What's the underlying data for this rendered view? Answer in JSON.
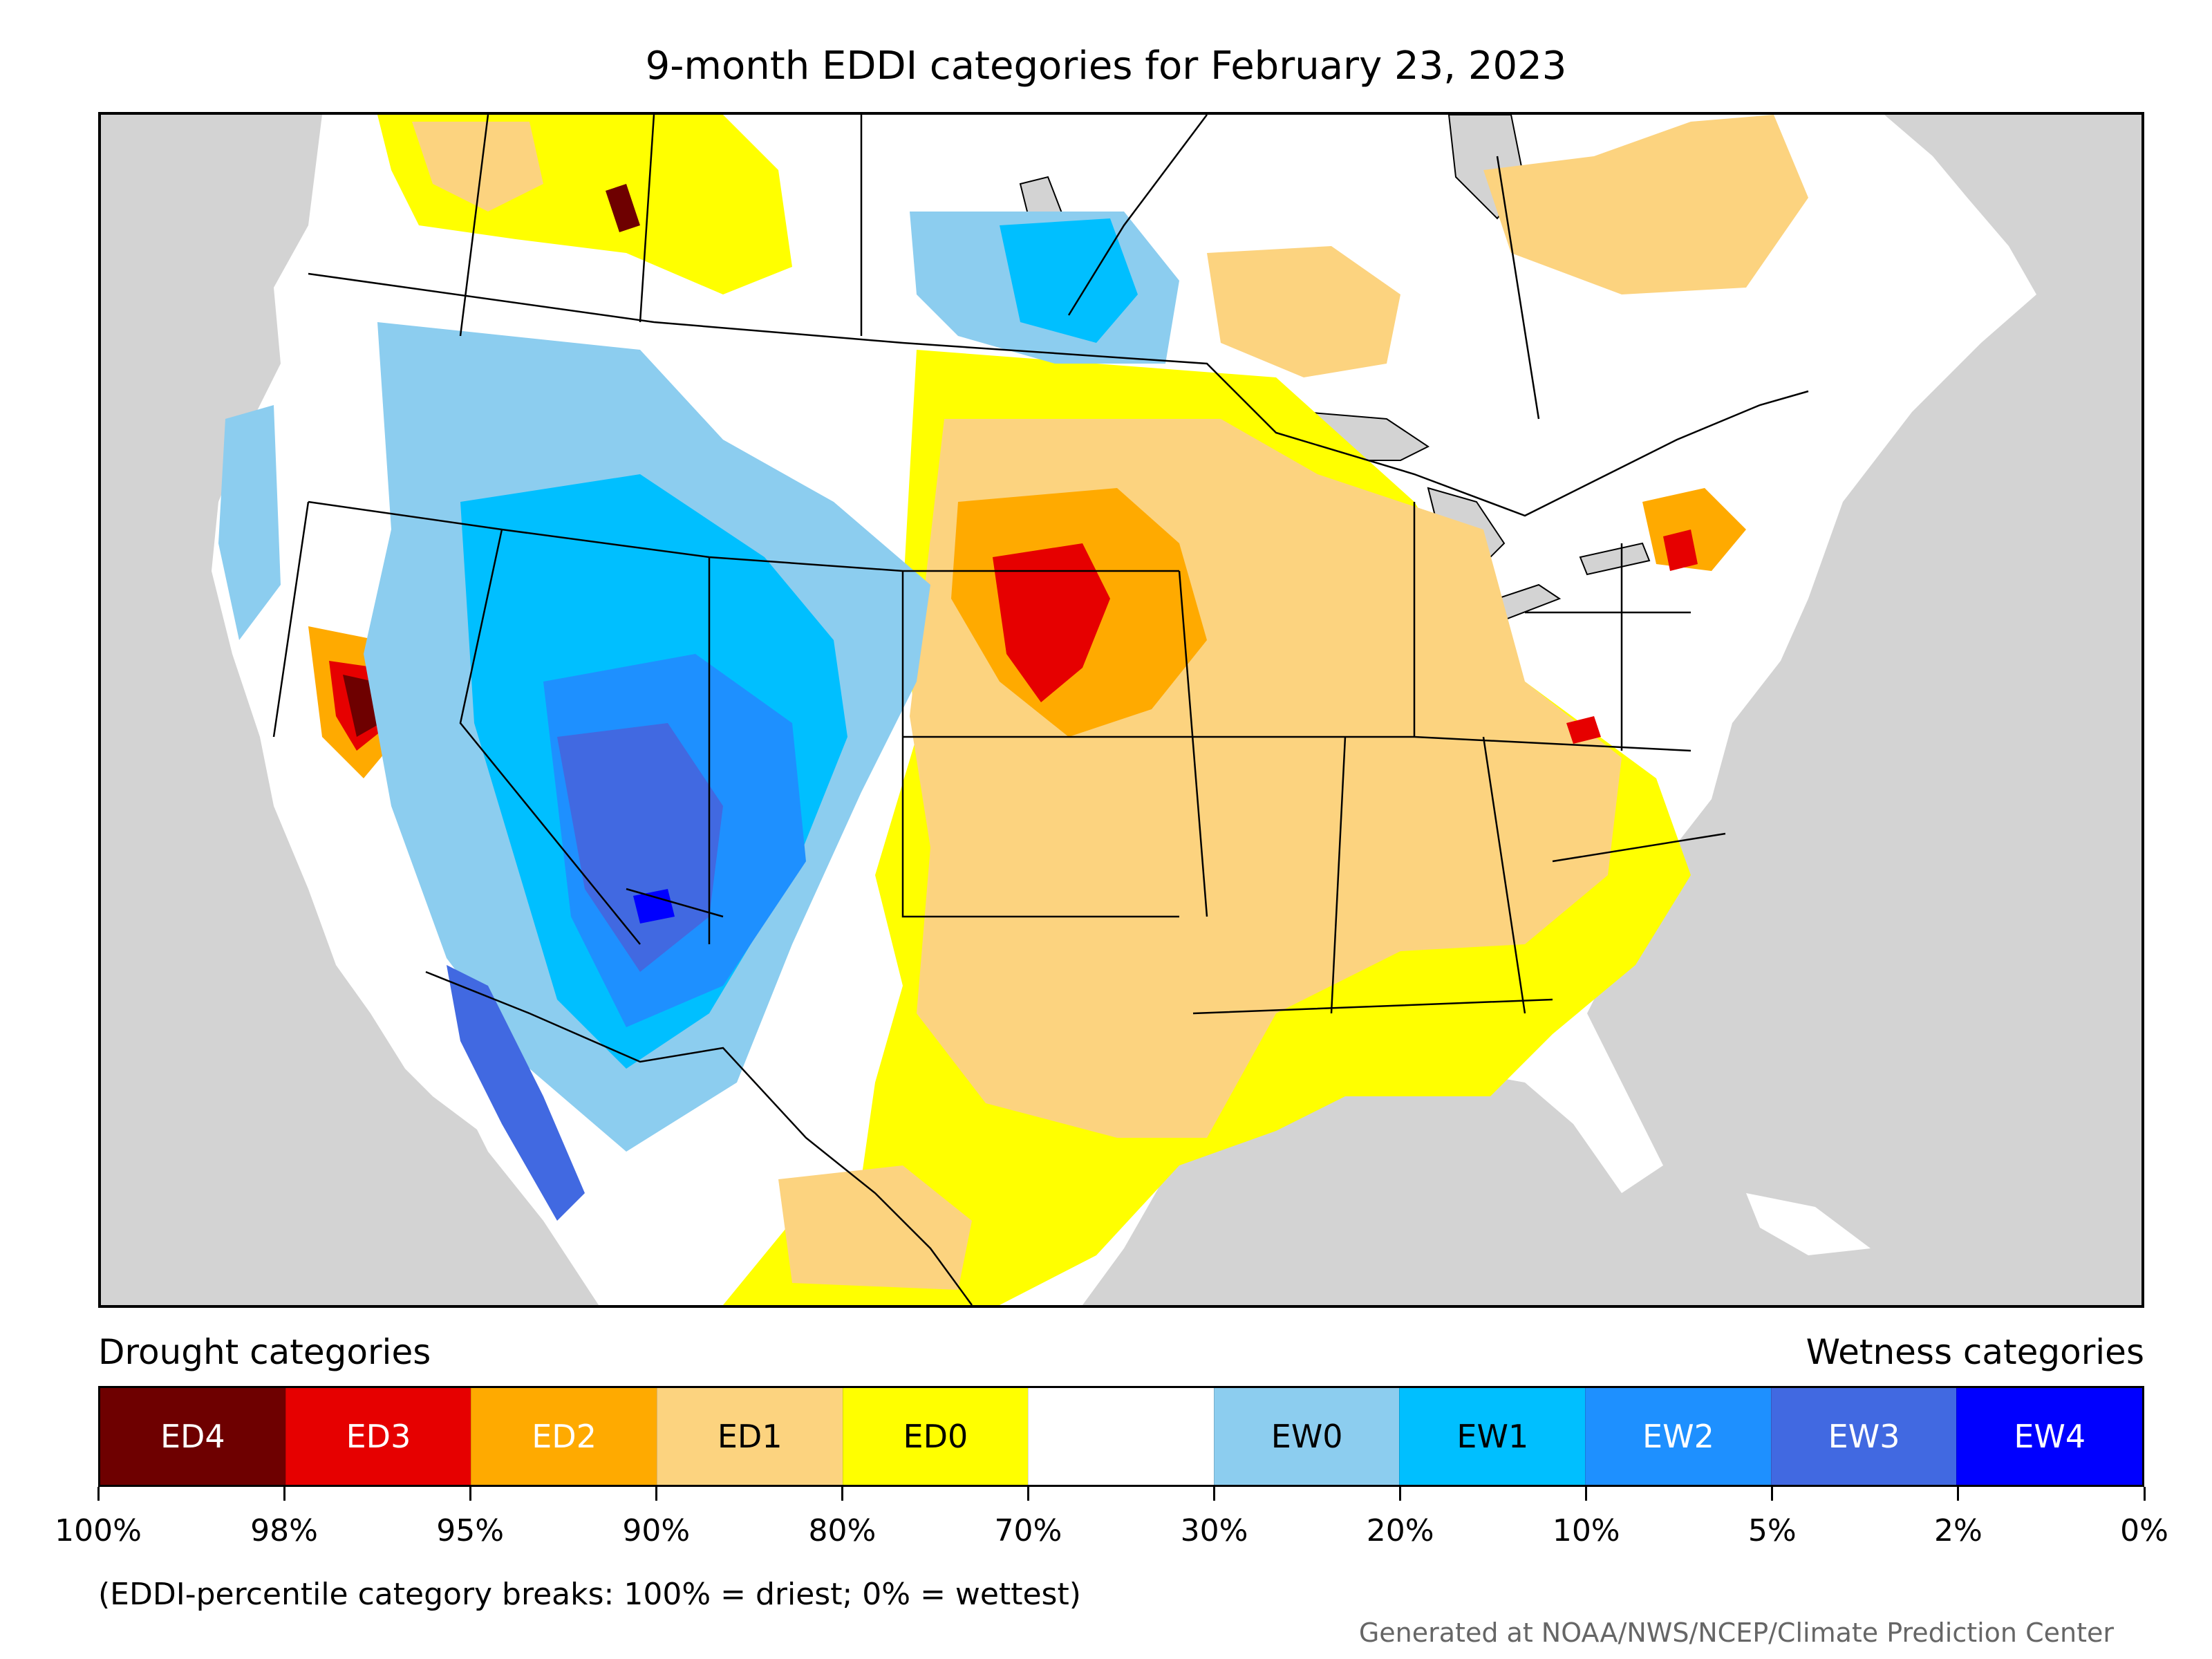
{
  "title": "9-month EDDI categories for February 23, 2023",
  "map": {
    "land_color": "#ffffff",
    "water_color": "#d3d3d3",
    "border_color": "#000000",
    "category_colors": {
      "ED4": "#6e0000",
      "ED3": "#e60000",
      "ED2": "#ffaa00",
      "ED1": "#fcd37f",
      "ED0": "#ffff00",
      "neutral": "#ffffff",
      "EW0": "#8ccdef",
      "EW1": "#00bfff",
      "EW2": "#1e90ff",
      "EW3": "#4169e1",
      "EW4": "#0000ff"
    }
  },
  "legend": {
    "drought_label": "Drought categories",
    "wetness_label": "Wetness categories",
    "categories": [
      {
        "label": "ED4",
        "color": "#6e0000",
        "text_color": "#ffffff"
      },
      {
        "label": "ED3",
        "color": "#e60000",
        "text_color": "#ffffff"
      },
      {
        "label": "ED2",
        "color": "#ffaa00",
        "text_color": "#ffffff"
      },
      {
        "label": "ED1",
        "color": "#fcd37f",
        "text_color": "#000000"
      },
      {
        "label": "ED0",
        "color": "#ffff00",
        "text_color": "#000000"
      },
      {
        "label": "",
        "color": "#ffffff",
        "text_color": "#000000"
      },
      {
        "label": "EW0",
        "color": "#8ccdef",
        "text_color": "#000000"
      },
      {
        "label": "EW1",
        "color": "#00bfff",
        "text_color": "#000000"
      },
      {
        "label": "EW2",
        "color": "#1e90ff",
        "text_color": "#ffffff"
      },
      {
        "label": "EW3",
        "color": "#4169e1",
        "text_color": "#ffffff"
      },
      {
        "label": "EW4",
        "color": "#0000ff",
        "text_color": "#ffffff"
      }
    ],
    "ticks": [
      "100%",
      "98%",
      "95%",
      "90%",
      "80%",
      "70%",
      "30%",
      "20%",
      "10%",
      "5%",
      "2%",
      "0%"
    ]
  },
  "note": "(EDDI-percentile category breaks: 100% = driest; 0% = wettest)",
  "credit": "Generated at NOAA/NWS/NCEP/Climate Prediction Center"
}
